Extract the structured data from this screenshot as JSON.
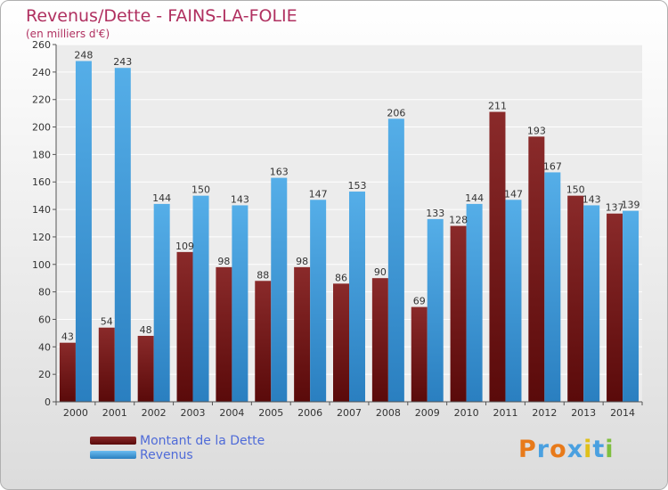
{
  "header": {
    "title": "Revenus/Dette - FAINS-LA-FOLIE",
    "subtitle": "(en milliers d'€)"
  },
  "legend": [
    {
      "label": "Montant de la Dette",
      "color": "#7a1a1a"
    },
    {
      "label": "Revenus",
      "color": "#4aa0e0"
    }
  ],
  "logo": {
    "text": "Proxiti",
    "colors": [
      "#e87a1a",
      "#4aa0e0",
      "#e87a1a",
      "#4aa0e0",
      "#e0c01a",
      "#4aa0e0",
      "#7fbf3f"
    ]
  },
  "chart_data": {
    "type": "bar",
    "categories": [
      "2000",
      "2001",
      "2002",
      "2003",
      "2004",
      "2005",
      "2006",
      "2007",
      "2008",
      "2009",
      "2010",
      "2011",
      "2012",
      "2013",
      "2014"
    ],
    "series": [
      {
        "name": "Montant de la Dette",
        "values": [
          43,
          54,
          48,
          109,
          98,
          88,
          98,
          86,
          90,
          69,
          128,
          211,
          193,
          150,
          137
        ],
        "color": "#7a1a1a"
      },
      {
        "name": "Revenus",
        "values": [
          248,
          243,
          144,
          150,
          143,
          163,
          147,
          153,
          206,
          133,
          144,
          147,
          167,
          143,
          139
        ],
        "color": "#4aa0e0"
      }
    ],
    "ylim": [
      0,
      260
    ],
    "yticks": [
      0,
      20,
      40,
      60,
      80,
      100,
      120,
      140,
      160,
      180,
      200,
      220,
      240,
      260
    ],
    "grid": true
  }
}
